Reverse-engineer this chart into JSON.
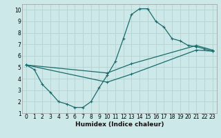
{
  "xlabel": "Humidex (Indice chaleur)",
  "bg_color": "#cce8e8",
  "grid_color": "#b8d4d4",
  "line_color": "#1a6b6b",
  "xlim": [
    -0.5,
    23.5
  ],
  "ylim": [
    1,
    10.5
  ],
  "xticks": [
    0,
    1,
    2,
    3,
    4,
    5,
    6,
    7,
    8,
    9,
    10,
    11,
    12,
    13,
    14,
    15,
    16,
    17,
    18,
    19,
    20,
    21,
    22,
    23
  ],
  "yticks": [
    1,
    2,
    3,
    4,
    5,
    6,
    7,
    8,
    9,
    10
  ],
  "curve1_x": [
    0,
    1,
    2,
    3,
    4,
    5,
    6,
    7,
    8,
    9,
    10,
    11,
    12,
    13,
    14,
    15,
    16,
    17,
    18,
    19,
    20,
    21,
    22,
    23
  ],
  "curve1_y": [
    5.2,
    4.8,
    3.5,
    2.8,
    2.0,
    1.8,
    1.5,
    1.5,
    2.0,
    3.2,
    4.3,
    5.5,
    7.5,
    9.6,
    10.1,
    10.1,
    9.0,
    8.5,
    7.5,
    7.3,
    6.9,
    6.8,
    6.6,
    6.4
  ],
  "curve2_x": [
    0,
    10,
    13,
    21,
    23
  ],
  "curve2_y": [
    5.2,
    4.5,
    5.3,
    6.9,
    6.5
  ],
  "curve3_x": [
    0,
    10,
    13,
    21,
    23
  ],
  "curve3_y": [
    5.2,
    3.7,
    4.4,
    6.5,
    6.4
  ],
  "tickfont": 5.5,
  "xlabelfont": 6.5
}
